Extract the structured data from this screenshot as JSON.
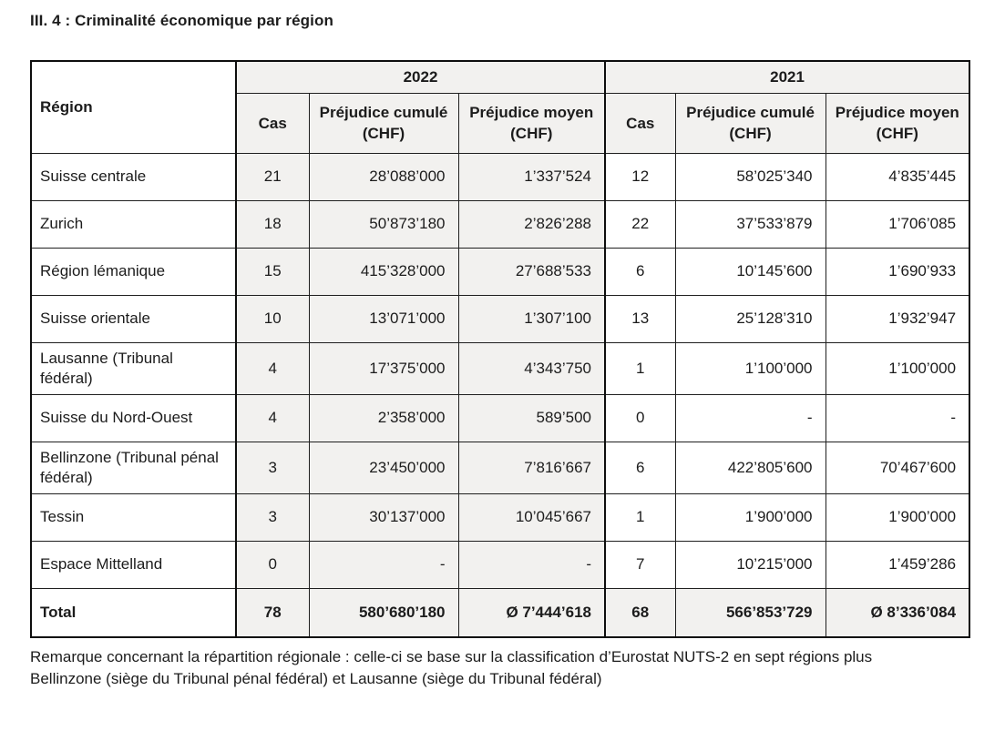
{
  "page": {
    "title": "III. 4 : Criminalité économique par région",
    "footnote": "Remarque concernant la répartition régionale : celle-ci se base sur la classification d’Eurostat NUTS-2 en sept régions plus Bellinzone (siège du Tribunal pénal fédéral) et Lausanne (siège du Tribunal fédéral)"
  },
  "table": {
    "region_header": "Région",
    "year_groups": [
      {
        "year": "2022",
        "columns": [
          "Cas",
          "Préjudice cumulé (CHF)",
          "Préjudice moyen (CHF)"
        ]
      },
      {
        "year": "2021",
        "columns": [
          "Cas",
          "Préjudice cumulé (CHF)",
          "Préjudice moyen (CHF)"
        ]
      }
    ],
    "rows": [
      {
        "region": "Suisse centrale",
        "cells": [
          "21",
          "28’088’000",
          "1’337’524",
          "12",
          "58’025’340",
          "4’835’445"
        ]
      },
      {
        "region": "Zurich",
        "cells": [
          "18",
          "50’873’180",
          "2’826’288",
          "22",
          "37’533’879",
          "1’706’085"
        ]
      },
      {
        "region": "Région lémanique",
        "cells": [
          "15",
          "415’328’000",
          "27’688’533",
          "6",
          "10’145’600",
          "1’690’933"
        ]
      },
      {
        "region": "Suisse orientale",
        "cells": [
          "10",
          "13’071’000",
          "1’307’100",
          "13",
          "25’128’310",
          "1’932’947"
        ]
      },
      {
        "region": "Lausanne (Tribunal fédéral)",
        "cells": [
          "4",
          "17’375’000",
          "4’343’750",
          "1",
          "1’100’000",
          "1’100’000"
        ]
      },
      {
        "region": "Suisse du Nord-Ouest",
        "cells": [
          "4",
          "2’358’000",
          "589’500",
          "0",
          "-",
          "-"
        ]
      },
      {
        "region": "Bellinzone (Tribunal pénal fédéral)",
        "cells": [
          "3",
          "23’450’000",
          "7’816’667",
          "6",
          "422’805’600",
          "70’467’600"
        ]
      },
      {
        "region": "Tessin",
        "cells": [
          "3",
          "30’137’000",
          "10’045’667",
          "1",
          "1’900’000",
          "1’900’000"
        ]
      },
      {
        "region": "Espace Mittelland",
        "cells": [
          "0",
          "-",
          "-",
          "7",
          "10’215’000",
          "1’459’286"
        ]
      }
    ],
    "total": {
      "region": "Total",
      "cells": [
        "78",
        "580’680’180",
        "Ø 7’444’618",
        "68",
        "566’853’729",
        "Ø 8’336’084"
      ]
    }
  }
}
